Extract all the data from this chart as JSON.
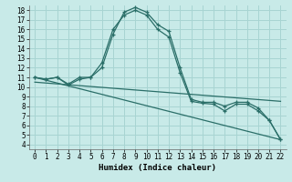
{
  "xlabel": "Humidex (Indice chaleur)",
  "background_color": "#c8eae8",
  "grid_color": "#a8d4d2",
  "line_color": "#2a6e68",
  "xlim": [
    -0.5,
    22.5
  ],
  "ylim": [
    3.5,
    18.5
  ],
  "yticks": [
    4,
    5,
    6,
    7,
    8,
    9,
    10,
    11,
    12,
    13,
    14,
    15,
    16,
    17,
    18
  ],
  "xticks": [
    0,
    1,
    2,
    3,
    4,
    5,
    6,
    7,
    8,
    9,
    10,
    11,
    12,
    13,
    14,
    15,
    16,
    17,
    18,
    19,
    20,
    21,
    22
  ],
  "line1_x": [
    0,
    1,
    2,
    3,
    4,
    5,
    6,
    7,
    8,
    9,
    10,
    11,
    12,
    13,
    14,
    15,
    16,
    17,
    18,
    19,
    20,
    21,
    22
  ],
  "line1_y": [
    11,
    10.8,
    11,
    10.3,
    11.0,
    11.0,
    12.5,
    16.0,
    17.5,
    18.0,
    17.5,
    16.0,
    15.2,
    11.5,
    8.5,
    8.3,
    8.2,
    7.5,
    8.2,
    8.2,
    7.5,
    6.5,
    4.5
  ],
  "line2_x": [
    0,
    1,
    2,
    3,
    4,
    5,
    6,
    7,
    8,
    9,
    10,
    11,
    12,
    13,
    14,
    15,
    16,
    17,
    18,
    19,
    20,
    21,
    22
  ],
  "line2_y": [
    11,
    10.8,
    11,
    10.2,
    10.8,
    11.0,
    12.0,
    15.5,
    17.8,
    18.3,
    17.8,
    16.5,
    15.8,
    12.0,
    8.7,
    8.4,
    8.4,
    8.0,
    8.4,
    8.4,
    7.8,
    6.5,
    4.5
  ],
  "line3_x": [
    0,
    22
  ],
  "line3_y": [
    11.0,
    4.5
  ],
  "line4_x": [
    0,
    22
  ],
  "line4_y": [
    10.5,
    8.5
  ]
}
